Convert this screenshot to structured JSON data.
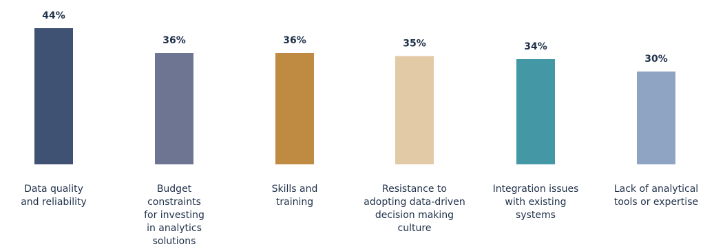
{
  "chart_data": {
    "type": "bar",
    "title": "",
    "xlabel": "",
    "ylabel": "",
    "ylim": [
      0,
      44
    ],
    "grid": false,
    "legend": "none",
    "categories": [
      "Data quality\nand reliability",
      "Budget\nconstraints\nfor investing\nin analytics\nsolutions",
      "Skills and\ntraining",
      "Resistance to\nadopting data-driven\ndecision making\nculture",
      "Integration issues\nwith existing\nsystems",
      "Lack of analytical\ntools or expertise"
    ],
    "values": [
      44,
      36,
      36,
      35,
      34,
      30
    ],
    "value_labels": [
      "44%",
      "36%",
      "36%",
      "35%",
      "34%",
      "30%"
    ],
    "colors": [
      "#3f5273",
      "#6d7592",
      "#bf8a42",
      "#e3caa7",
      "#4498a5",
      "#8fa3c3"
    ]
  }
}
